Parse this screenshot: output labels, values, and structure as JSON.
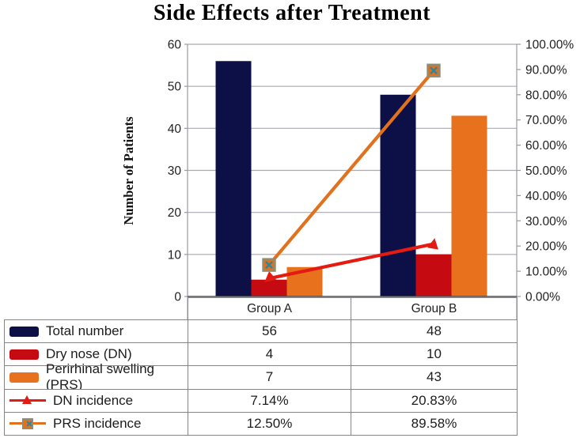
{
  "chart_data": {
    "type": "bar",
    "subtype": "clustered-bars-with-lines-combo",
    "title": "Side Effects after Treatment",
    "categories": [
      "Group A",
      "Group B"
    ],
    "bar_series": [
      {
        "name": "Total number",
        "values": [
          56,
          48
        ],
        "color": "#0c1046"
      },
      {
        "name": "Dry nose (DN)",
        "values": [
          4,
          10
        ],
        "color": "#c50b11"
      },
      {
        "name": "Perirhinal swelling (PRS)",
        "values": [
          7,
          43
        ],
        "color": "#e7711d"
      }
    ],
    "line_series": [
      {
        "name": "DN incidence",
        "values": [
          7.14,
          20.83
        ],
        "labels": [
          "7.14%",
          "20.83%"
        ],
        "color": "#e41b12",
        "marker": "triangle"
      },
      {
        "name": "PRS incidence",
        "values": [
          12.5,
          89.58
        ],
        "labels": [
          "12.50%",
          "89.58%"
        ],
        "color": "#e2711d",
        "marker": "square-x"
      }
    ],
    "left_axis": {
      "label": "Number of Patients",
      "min": 0,
      "max": 60,
      "step": 10,
      "ticks": [
        "60",
        "50",
        "40",
        "30",
        "20",
        "10",
        "0"
      ]
    },
    "right_axis": {
      "min": 0,
      "max": 100,
      "step": 10,
      "ticks": [
        "100.00%",
        "90.00%",
        "80.00%",
        "70.00%",
        "60.00%",
        "50.00%",
        "40.00%",
        "30.00%",
        "20.00%",
        "10.00%",
        "0.00%"
      ]
    },
    "grid": true,
    "legend_position": "data-table-below-chart"
  },
  "colors": {
    "gridline": "#a9a9b2",
    "axis_frame": "#9a9aa2",
    "x_axis": "#4d4d57",
    "table_border": "#858585",
    "tick_text": "#1f1f1f",
    "marker_square_border": "#8f8c72",
    "marker_square_x": "#2e859c"
  }
}
